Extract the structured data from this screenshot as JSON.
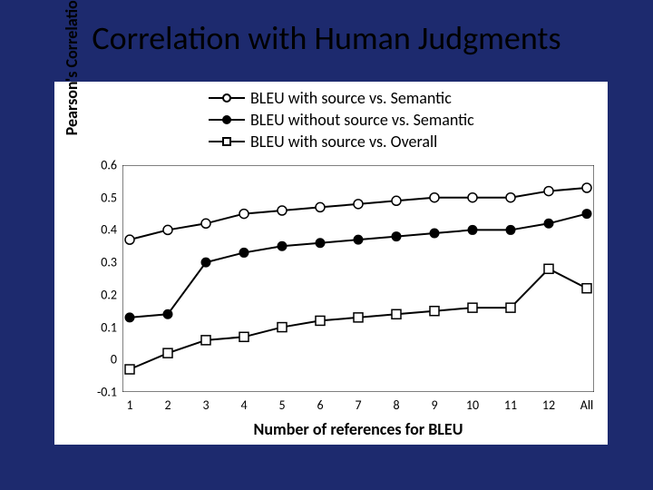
{
  "slide": {
    "title": "Correlation with Human Judgments",
    "background_color": "#1d2a6e",
    "panel_background": "#ffffff",
    "text_color": "#000000"
  },
  "chart": {
    "type": "line",
    "x_categories": [
      "1",
      "2",
      "3",
      "4",
      "5",
      "6",
      "7",
      "8",
      "9",
      "10",
      "11",
      "12",
      "All"
    ],
    "x_label": "Number of references for BLEU",
    "y_label": "Pearson's Correlation",
    "ylim": [
      -0.1,
      0.6
    ],
    "ytick_step": 0.1,
    "y_ticks": [
      "-0.1",
      "0",
      "0.1",
      "0.2",
      "0.3",
      "0.4",
      "0.5",
      "0.6"
    ],
    "line_color": "#000000",
    "line_width": 2,
    "marker_size": 10,
    "grid": false,
    "series": [
      {
        "name": "BLEU with source vs. Semantic",
        "marker": "circle-open",
        "fill": "#ffffff",
        "stroke": "#000000",
        "values": [
          0.37,
          0.4,
          0.42,
          0.45,
          0.46,
          0.47,
          0.48,
          0.49,
          0.5,
          0.5,
          0.5,
          0.52,
          0.53
        ]
      },
      {
        "name": "BLEU without source vs. Semantic",
        "marker": "circle-filled",
        "fill": "#000000",
        "stroke": "#000000",
        "values": [
          0.13,
          0.14,
          0.3,
          0.33,
          0.35,
          0.36,
          0.37,
          0.38,
          0.39,
          0.4,
          0.4,
          0.42,
          0.45
        ]
      },
      {
        "name": "BLEU with source vs. Overall",
        "marker": "square-open",
        "fill": "#ffffff",
        "stroke": "#000000",
        "values": [
          -0.03,
          0.02,
          0.06,
          0.07,
          0.1,
          0.12,
          0.13,
          0.14,
          0.15,
          0.16,
          0.16,
          0.28,
          0.22
        ]
      }
    ]
  }
}
